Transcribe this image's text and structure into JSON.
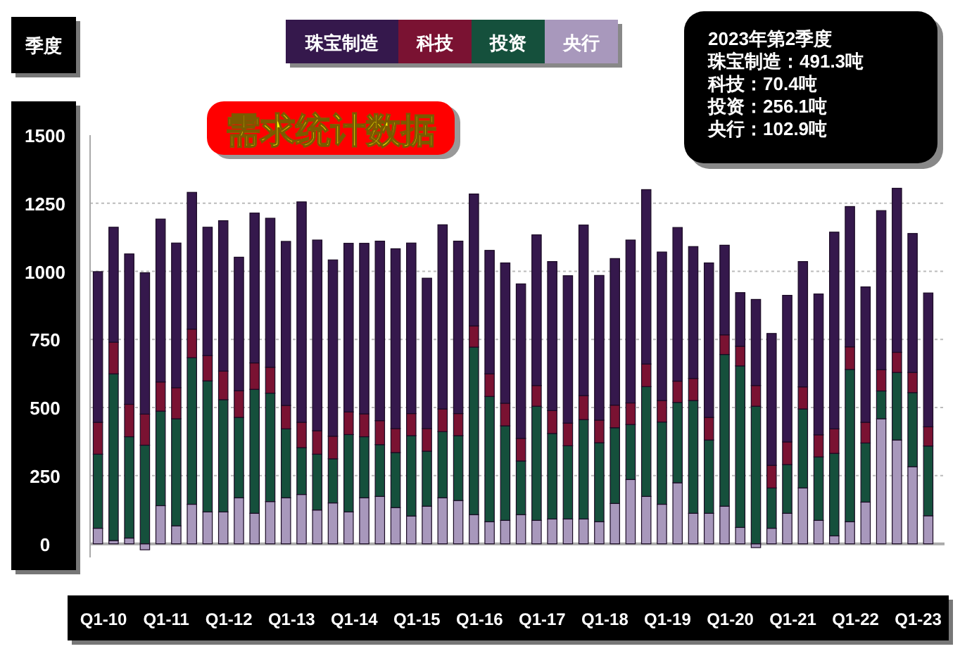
{
  "chart_data": {
    "type": "bar",
    "title": "需求统计数据",
    "xlabel": "季度",
    "stacked": true,
    "grid": "y",
    "legend": "top",
    "categories": [
      "Q1-10",
      null,
      null,
      null,
      "Q1-11",
      null,
      null,
      null,
      "Q1-12",
      null,
      null,
      null,
      "Q1-13",
      null,
      null,
      null,
      "Q1-14",
      null,
      null,
      null,
      "Q1-15",
      null,
      null,
      null,
      "Q1-16",
      null,
      null,
      null,
      "Q1-17",
      null,
      null,
      null,
      "Q1-18",
      null,
      null,
      null,
      "Q1-19",
      null,
      null,
      null,
      "Q1-20",
      null,
      null,
      null,
      "Q1-21",
      null,
      null,
      null,
      "Q1-22",
      null,
      null,
      null,
      "Q1-23",
      null
    ],
    "series": [
      {
        "name": "央行",
        "color": "#a898bc",
        "values": [
          57,
          12,
          21,
          -22,
          140,
          66,
          145,
          117,
          117,
          169,
          112,
          155,
          169,
          181,
          124,
          150,
          117,
          169,
          174,
          133,
          102,
          138,
          169,
          159,
          107,
          81,
          86,
          107,
          86,
          91,
          91,
          91,
          81,
          148,
          236,
          174,
          145,
          224,
          112,
          112,
          138,
          60,
          -14,
          57,
          112,
          205,
          86,
          29,
          81,
          153,
          459,
          381,
          283,
          102.9
        ]
      },
      {
        "name": "投资",
        "color": "#15503c",
        "values": [
          272,
          612,
          372,
          362,
          347,
          393,
          538,
          481,
          412,
          295,
          455,
          398,
          253,
          172,
          205,
          162,
          284,
          224,
          190,
          202,
          295,
          202,
          243,
          238,
          615,
          460,
          347,
          197,
          419,
          314,
          269,
          365,
          290,
          278,
          202,
          403,
          302,
          295,
          414,
          269,
          557,
          593,
          505,
          148,
          179,
          290,
          233,
          303,
          559,
          217,
          102,
          248,
          272,
          256.1
        ]
      },
      {
        "name": "科技",
        "color": "#7a1232",
        "values": [
          117,
          116,
          119,
          114,
          107,
          114,
          105,
          93,
          105,
          98,
          97,
          95,
          86,
          93,
          86,
          83,
          83,
          84,
          88,
          88,
          81,
          83,
          83,
          81,
          78,
          83,
          83,
          83,
          76,
          84,
          83,
          88,
          83,
          83,
          79,
          83,
          79,
          78,
          81,
          83,
          72,
          72,
          76,
          83,
          83,
          81,
          81,
          90,
          83,
          76,
          78,
          74,
          74,
          70.4
        ]
      },
      {
        "name": "珠宝制造",
        "color": "#35184c",
        "values": [
          553,
          422,
          552,
          519,
          598,
          531,
          502,
          471,
          552,
          490,
          550,
          547,
          602,
          809,
          700,
          647,
          619,
          626,
          659,
          660,
          626,
          552,
          676,
          633,
          484,
          453,
          515,
          567,
          553,
          547,
          541,
          626,
          531,
          538,
          598,
          640,
          545,
          564,
          484,
          567,
          329,
          197,
          316,
          484,
          538,
          460,
          517,
          722,
          515,
          497,
          584,
          602,
          510,
          491.3
        ]
      }
    ],
    "ylim": [
      -50,
      1500
    ],
    "yticks": [
      0,
      250,
      500,
      750,
      1000,
      1250,
      1500
    ],
    "annotations": [
      "2023年第2季度",
      "珠宝制造：491.3吨",
      "科技：70.4吨",
      "投资：256.1吨",
      "央行：102.9吨"
    ]
  }
}
